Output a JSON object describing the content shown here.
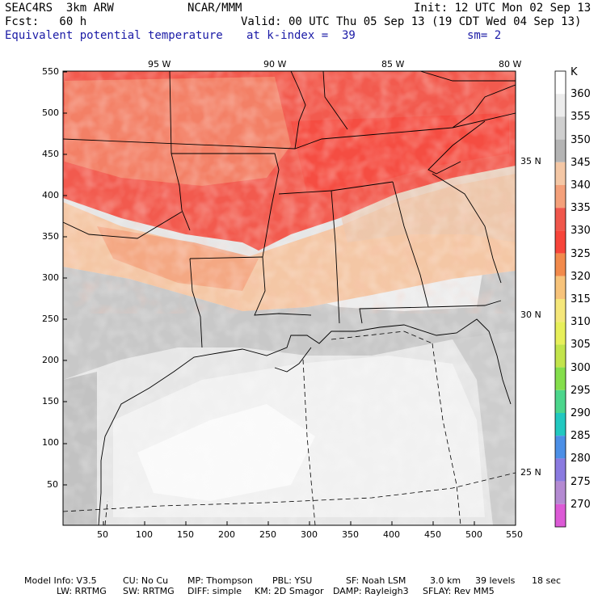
{
  "header": {
    "model": "SEAC4RS  3km ARW",
    "center": "NCAR/MMM",
    "init": "Init: 12 UTC Mon 02 Sep 13",
    "fcst": "Fcst:   60 h",
    "valid": "Valid: 00 UTC Thu 05 Sep 13 (19 CDT Wed 04 Sep 13)",
    "field": "Equivalent potential temperature",
    "level": "at k-index =  39",
    "smooth": "sm= 2"
  },
  "map": {
    "lon_labels": [
      "95 W",
      "90 W",
      "85 W",
      "80 W"
    ],
    "lat_labels": [
      "35 N",
      "30 N",
      "25 N"
    ],
    "x_ticks": [
      "50",
      "100",
      "150",
      "200",
      "250",
      "300",
      "350",
      "400",
      "450",
      "500",
      "550"
    ],
    "y_ticks": [
      "550",
      "500",
      "450",
      "400",
      "350",
      "300",
      "250",
      "200",
      "150",
      "100",
      "50"
    ]
  },
  "colorbar": {
    "unit": "K",
    "levels": [
      "360",
      "355",
      "350",
      "345",
      "340",
      "335",
      "330",
      "325",
      "320",
      "315",
      "310",
      "305",
      "300",
      "295",
      "290",
      "285",
      "280",
      "275",
      "270"
    ],
    "colors": [
      "#ffffff",
      "#ececec",
      "#cfcfcf",
      "#b4b4b4",
      "#f4c7a5",
      "#f4a07a",
      "#f0574c",
      "#f7453a",
      "#f28a4c",
      "#f7c37a",
      "#f5e77a",
      "#e7ef5a",
      "#c2e44c",
      "#84de4c",
      "#4cd68c",
      "#22c8c0",
      "#4c8fe6",
      "#8a7ae0",
      "#b48ad2",
      "#dc5ad6"
    ]
  },
  "footer": {
    "line1": [
      "Model Info: V3.5",
      "CU: No Cu",
      "MP: Thompson",
      "PBL: YSU",
      "SF: Noah LSM",
      "3.0 km",
      "39 levels",
      "18 sec"
    ],
    "line2": [
      "LW: RRTMG",
      "SW: RRTMG",
      "DIFF: simple",
      "KM: 2D Smagor",
      "DAMP: Rayleigh3",
      "SFLAY: Rev MM5"
    ]
  }
}
